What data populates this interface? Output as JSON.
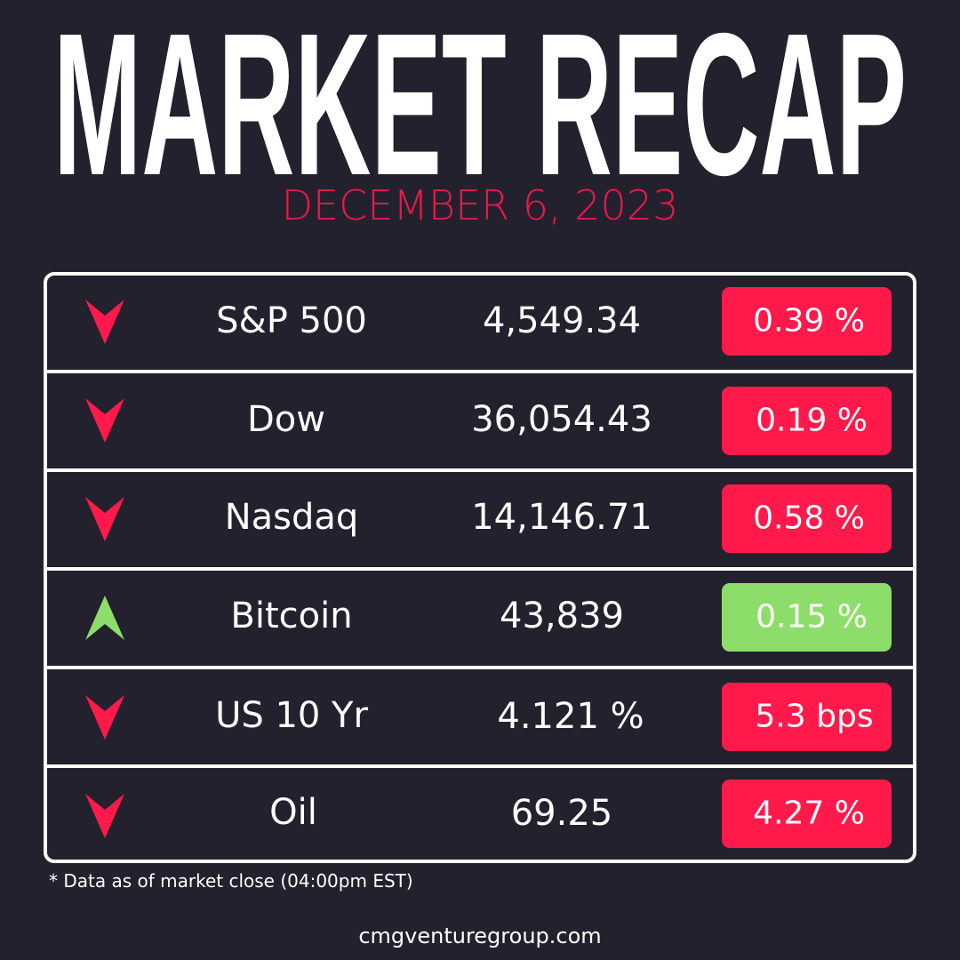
{
  "header": {
    "title": "MARKET RECAP",
    "date": "DECEMBER 6, 2023"
  },
  "table": {
    "rows": [
      [
        "S&P 500",
        "4,549.34",
        "0.39 %"
      ],
      [
        "Dow",
        "36,054.43",
        "0.19 %"
      ],
      [
        "Nasdaq",
        "14,146.71",
        "0.58 %"
      ],
      [
        "Bitcoin",
        "43,839",
        "0.15 %"
      ],
      [
        "US 10 Yr",
        "4.121 %",
        "5.3 bps"
      ],
      [
        "Oil",
        "69.25",
        "4.27 %"
      ]
    ]
  },
  "footer": {
    "note": "* Data as of market close (04:00pm EST)",
    "site": "cmgventuregroup.com"
  }
}
